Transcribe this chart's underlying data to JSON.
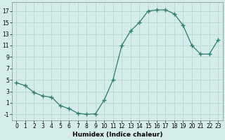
{
  "x": [
    0,
    1,
    2,
    3,
    4,
    5,
    6,
    7,
    8,
    9,
    10,
    11,
    12,
    13,
    14,
    15,
    16,
    17,
    18,
    19,
    20,
    21,
    22,
    23
  ],
  "y": [
    4.5,
    4.0,
    2.8,
    2.2,
    2.0,
    0.5,
    0.0,
    -0.8,
    -1.0,
    -0.9,
    1.5,
    5.0,
    11.0,
    13.5,
    15.0,
    17.0,
    17.2,
    17.2,
    16.5,
    14.5,
    11.0,
    9.5,
    9.5,
    12.0
  ],
  "xlabel": "Humidex (Indice chaleur)",
  "xlim": [
    -0.5,
    23.5
  ],
  "ylim": [
    -2,
    18.5
  ],
  "yticks": [
    -1,
    1,
    3,
    5,
    7,
    9,
    11,
    13,
    15,
    17
  ],
  "xticks": [
    0,
    1,
    2,
    3,
    4,
    5,
    6,
    7,
    8,
    9,
    10,
    11,
    12,
    13,
    14,
    15,
    16,
    17,
    18,
    19,
    20,
    21,
    22,
    23
  ],
  "line_color": "#2e7d6e",
  "marker": "+",
  "marker_size": 4,
  "marker_edge_width": 1.0,
  "line_width": 0.9,
  "bg_color": "#d4edea",
  "grid_color": "#b8d8d4",
  "tick_label_fontsize": 5.5,
  "xlabel_fontsize": 6.5,
  "spine_color": "#888888"
}
